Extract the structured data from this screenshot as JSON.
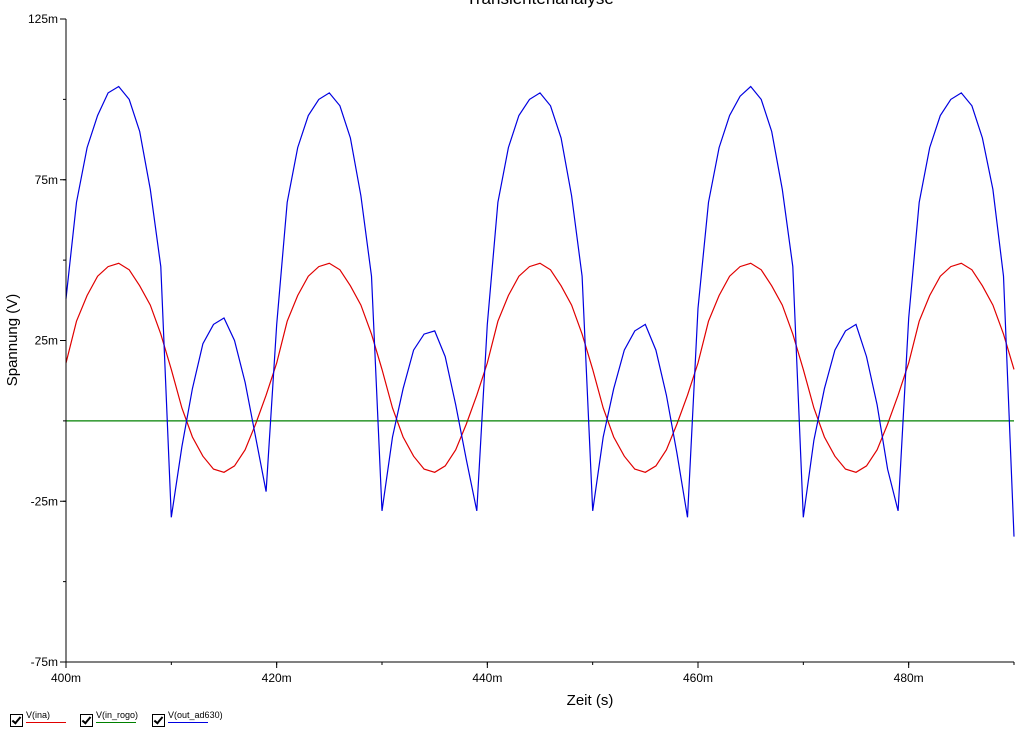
{
  "chart_data": {
    "type": "line",
    "title": "Transientenanalyse",
    "xlabel": "Zeit (s)",
    "ylabel": "Spannung (V)",
    "xlim": [
      400,
      490
    ],
    "ylim": [
      -75,
      125
    ],
    "x_unit_suffix": "m",
    "x_ticks": [
      "400m",
      "420m",
      "440m",
      "460m",
      "480m"
    ],
    "x_tick_values": [
      400,
      420,
      440,
      460,
      480
    ],
    "y_ticks": [
      "125m",
      "75m",
      "25m",
      "-25m",
      "-75m"
    ],
    "y_tick_values": [
      125,
      75,
      25,
      -25,
      -75
    ],
    "x_minor_step": 10,
    "y_minor_step": 25,
    "grid": false,
    "legend_position": "bottom-left",
    "x": [
      400,
      401,
      402,
      403,
      404,
      405,
      406,
      407,
      408,
      409,
      410,
      411,
      412,
      413,
      414,
      415,
      416,
      417,
      418,
      419,
      420,
      421,
      422,
      423,
      424,
      425,
      426,
      427,
      428,
      429,
      430,
      431,
      432,
      433,
      434,
      435,
      436,
      437,
      438,
      439,
      440,
      441,
      442,
      443,
      444,
      445,
      446,
      447,
      448,
      449,
      450,
      451,
      452,
      453,
      454,
      455,
      456,
      457,
      458,
      459,
      460,
      461,
      462,
      463,
      464,
      465,
      466,
      467,
      468,
      469,
      470,
      471,
      472,
      473,
      474,
      475,
      476,
      477,
      478,
      479,
      480,
      481,
      482,
      483,
      484,
      485,
      486,
      487,
      488,
      489,
      490
    ],
    "series": [
      {
        "name": "V(ina)",
        "color": "#e00000",
        "values": [
          18,
          31,
          39,
          45,
          48,
          49,
          47,
          42,
          36,
          27,
          16,
          4,
          -5,
          -11,
          -15,
          -16,
          -14,
          -9,
          -1,
          8,
          18,
          31,
          39,
          45,
          48,
          49,
          47,
          42,
          36,
          27,
          16,
          4,
          -5,
          -11,
          -15,
          -16,
          -14,
          -9,
          -1,
          8,
          18,
          31,
          39,
          45,
          48,
          49,
          47,
          42,
          36,
          27,
          16,
          4,
          -5,
          -11,
          -15,
          -16,
          -14,
          -9,
          -1,
          8,
          18,
          31,
          39,
          45,
          48,
          49,
          47,
          42,
          36,
          27,
          16,
          4,
          -5,
          -11,
          -15,
          -16,
          -14,
          -9,
          -1,
          8,
          18,
          31,
          39,
          45,
          48,
          49,
          47,
          42,
          36,
          27,
          16
        ]
      },
      {
        "name": "V(in_rogo)",
        "color": "#008000",
        "values": [
          0,
          0,
          0,
          0,
          0,
          0,
          0,
          0,
          0,
          0,
          0,
          0,
          0,
          0,
          0,
          0,
          0,
          0,
          0,
          0,
          0,
          0,
          0,
          0,
          0,
          0,
          0,
          0,
          0,
          0,
          0,
          0,
          0,
          0,
          0,
          0,
          0,
          0,
          0,
          0,
          0,
          0,
          0,
          0,
          0,
          0,
          0,
          0,
          0,
          0,
          0,
          0,
          0,
          0,
          0,
          0,
          0,
          0,
          0,
          0,
          0,
          0,
          0,
          0,
          0,
          0,
          0,
          0,
          0,
          0,
          0,
          0,
          0,
          0,
          0,
          0,
          0,
          0,
          0,
          0,
          0,
          0,
          0,
          0,
          0,
          0,
          0,
          0,
          0,
          0,
          0
        ]
      },
      {
        "name": "V(out_ad630)",
        "color": "#0000e0",
        "values": [
          38,
          68,
          85,
          95,
          102,
          104,
          100,
          90,
          72,
          48,
          -30,
          -8,
          10,
          24,
          30,
          32,
          25,
          12,
          -5,
          -22,
          30,
          68,
          85,
          95,
          100,
          102,
          98,
          88,
          70,
          45,
          -28,
          -5,
          10,
          22,
          27,
          28,
          20,
          5,
          -12,
          -28,
          30,
          68,
          85,
          95,
          100,
          102,
          98,
          88,
          70,
          45,
          -28,
          -5,
          10,
          22,
          28,
          30,
          22,
          8,
          -10,
          -30,
          35,
          68,
          85,
          95,
          101,
          104,
          100,
          90,
          72,
          48,
          -30,
          -6,
          10,
          22,
          28,
          30,
          20,
          5,
          -15,
          -28,
          32,
          68,
          85,
          95,
          100,
          102,
          98,
          88,
          72,
          45,
          -36
        ]
      }
    ]
  }
}
